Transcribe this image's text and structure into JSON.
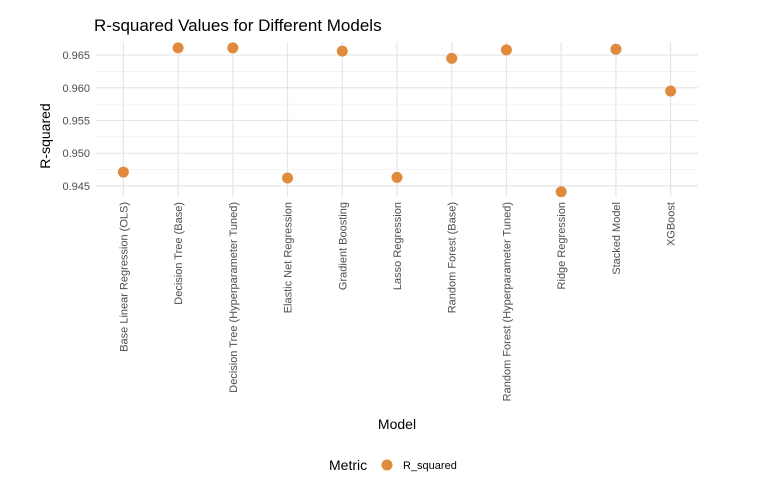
{
  "chart_data": {
    "type": "scatter",
    "title": "R-squared Values for Different Models",
    "xlabel": "Model",
    "ylabel": "R-squared",
    "categories": [
      "Base Linear Regression (OLS)",
      "Decision Tree (Base)",
      "Decision Tree (Hyperparameter Tuned)",
      "Elastic Net Regression",
      "Gradient Boosting",
      "Lasso Regression",
      "Random Forest (Base)",
      "Random Forest (Hyperparameter Tuned)",
      "Ridge Regression",
      "Stacked Model",
      "XGBoost"
    ],
    "series": [
      {
        "name": "R_squared",
        "color": "#e08a3c",
        "values": [
          0.9471,
          0.9661,
          0.9661,
          0.9462,
          0.9656,
          0.9463,
          0.9645,
          0.9658,
          0.9441,
          0.9659,
          0.9595
        ]
      }
    ],
    "ylim": [
      0.9433,
      0.967
    ],
    "yticks": [
      0.945,
      0.95,
      0.955,
      0.96,
      0.965
    ],
    "ytick_labels": [
      "0.945",
      "0.950",
      "0.955",
      "0.960",
      "0.965"
    ],
    "grid": true,
    "legend": {
      "title": "Metric",
      "position": "bottom",
      "entries": [
        "R_squared"
      ]
    }
  }
}
